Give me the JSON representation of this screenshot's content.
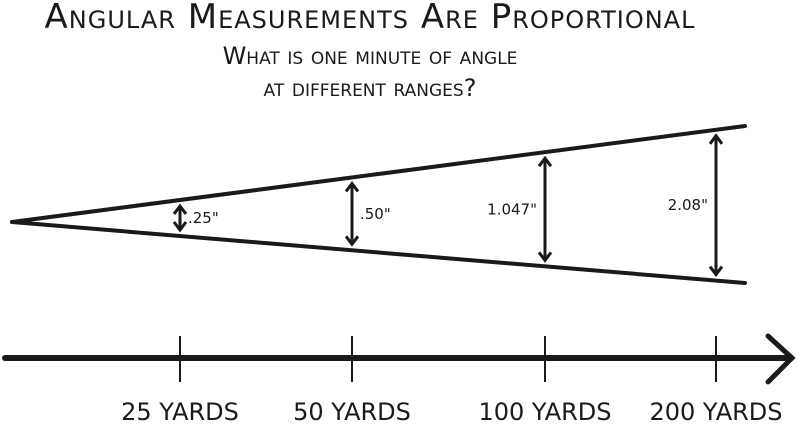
{
  "header": {
    "title": "Angular Measurements Are Proportional",
    "subtitle": [
      "What is one minute of angle",
      "at different ranges?"
    ]
  },
  "cone": {
    "measurements": [
      ".25\"",
      ".50\"",
      "1.047\"",
      "2.08\""
    ]
  },
  "axis": {
    "ranges": [
      "25 yards",
      "50 yards",
      "100 yards",
      "200 yards"
    ]
  }
}
